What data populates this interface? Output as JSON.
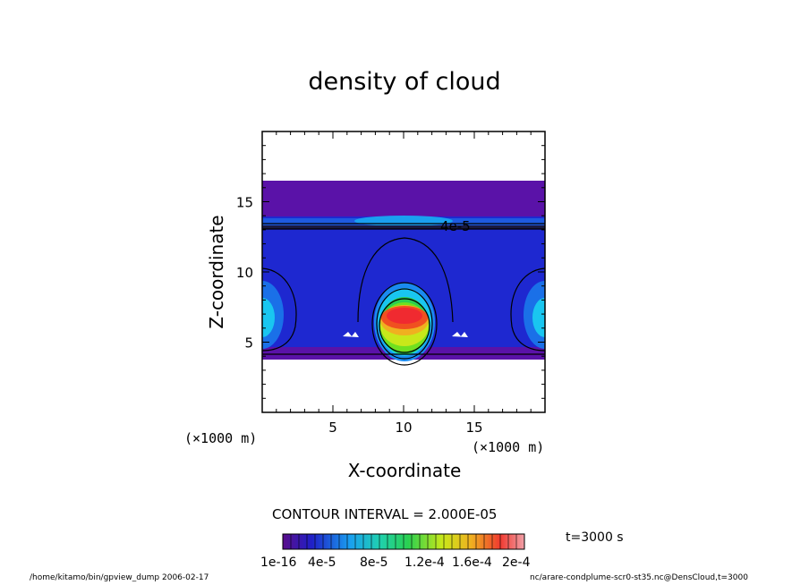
{
  "chart_data": {
    "type": "heatmap",
    "title": "density of cloud",
    "xlabel": "X-coordinate",
    "ylabel": "Z-coordinate",
    "x_unit": "(×1000 m)",
    "y_unit": "(×1000 m)",
    "xlim": [
      0,
      20
    ],
    "ylim": [
      0,
      20
    ],
    "x_ticks": [
      "5",
      "10",
      "15"
    ],
    "y_ticks": [
      "5",
      "10",
      "15"
    ],
    "contour_annotation": "4e-5",
    "contour_interval": "CONTOUR INTERVAL = 2.000E-05",
    "time_label": "t=3000 s",
    "colorbar_labels": [
      "1e-16",
      "4e-5",
      "8e-5",
      "1.2e-4",
      "1.6e-4",
      "2e-4"
    ],
    "colorbar_range": [
      0,
      0.0002
    ],
    "colors": [
      "#5a0d8a",
      "#4a1aa8",
      "#2020c8",
      "#1a4be0",
      "#1a8af0",
      "#19c6f0",
      "#20d0b0",
      "#2ad050",
      "#70e020",
      "#c8e81a",
      "#f0d020",
      "#f09020",
      "#f05020",
      "#f02a30",
      "#f09aa0"
    ]
  },
  "footer": {
    "left": "/home/kitamo/bin/gpview_dump  2006-02-17",
    "right": "nc/arare-condplume-scr0-st35.nc@DensCloud,t=3000"
  }
}
